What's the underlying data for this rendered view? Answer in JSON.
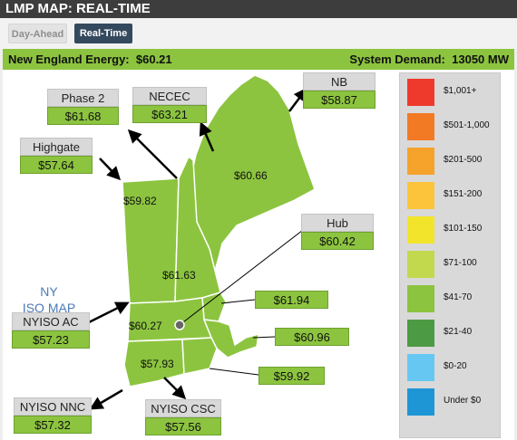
{
  "title": "LMP MAP: REAL-TIME",
  "tabs": {
    "day_ahead": "Day-Ahead",
    "real_time": "Real-Time"
  },
  "summary": {
    "energy_label": "New England Energy:",
    "energy_value": "$60.21",
    "demand_label": "System Demand:",
    "demand_value": "13050 MW"
  },
  "map": {
    "nyiso_label_line1": "NY",
    "nyiso_label_line2": "ISO MAP",
    "zone_values": {
      "maine": "$60.66",
      "vermont": "$59.82",
      "new_hampshire": "$61.63",
      "western_mass": "$60.27",
      "connecticut": "$57.93"
    },
    "callouts": {
      "phase2": {
        "name": "Phase 2",
        "price": "$61.68"
      },
      "necec": {
        "name": "NECEC",
        "price": "$63.21"
      },
      "nb": {
        "name": "NB",
        "price": "$58.87"
      },
      "highgate": {
        "name": "Highgate",
        "price": "$57.64"
      },
      "hub": {
        "name": "Hub",
        "price": "$60.42"
      },
      "nyiso_ac": {
        "name": "NYISO AC",
        "price": "$57.23"
      },
      "nyiso_nnc": {
        "name": "NYISO NNC",
        "price": "$57.32"
      },
      "nyiso_csc": {
        "name": "NYISO CSC",
        "price": "$57.56"
      },
      "nemass": {
        "price": "$61.94"
      },
      "semass": {
        "price": "$60.96"
      },
      "rhode_island": {
        "price": "$59.92"
      }
    }
  },
  "legend": [
    {
      "label": "$1,001+",
      "color": "#ee3a2d"
    },
    {
      "label": "$501-1,000",
      "color": "#f37a24"
    },
    {
      "label": "$201-500",
      "color": "#f5a32a"
    },
    {
      "label": "$151-200",
      "color": "#fcc43a"
    },
    {
      "label": "$101-150",
      "color": "#f2e42a"
    },
    {
      "label": "$71-100",
      "color": "#c2d94d"
    },
    {
      "label": "$41-70",
      "color": "#8cc43f"
    },
    {
      "label": "$21-40",
      "color": "#4d9a45"
    },
    {
      "label": "$0-20",
      "color": "#66c8f2"
    },
    {
      "label": "Under $0",
      "color": "#1e96d6"
    }
  ]
}
